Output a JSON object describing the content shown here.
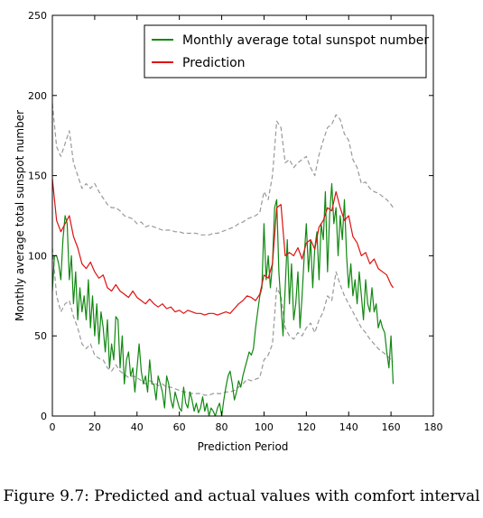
{
  "caption": "Figure 9.7: Predicted and actual values with comfort interval",
  "colors": {
    "actual": "#118811",
    "prediction": "#dd1111",
    "interval": "#999999"
  },
  "chart_data": {
    "type": "line",
    "xlabel": "Prediction Period",
    "ylabel": "Monthly average total sunspot number",
    "xlim": [
      0,
      180
    ],
    "ylim": [
      0,
      250
    ],
    "xticks": [
      0,
      20,
      40,
      60,
      80,
      100,
      120,
      140,
      160,
      180
    ],
    "yticks": [
      0,
      50,
      100,
      150,
      200,
      250
    ],
    "legend_position": "top-right",
    "legend": [
      "Monthly average total sunspot number",
      "Prediction"
    ],
    "series": [
      {
        "name": "Monthly average total sunspot number",
        "color": "#118811",
        "x": [
          0,
          1,
          2,
          3,
          4,
          5,
          6,
          7,
          8,
          9,
          10,
          11,
          12,
          13,
          14,
          15,
          16,
          17,
          18,
          19,
          20,
          21,
          22,
          23,
          24,
          25,
          26,
          27,
          28,
          29,
          30,
          31,
          32,
          33,
          34,
          35,
          36,
          37,
          38,
          39,
          40,
          41,
          42,
          43,
          44,
          45,
          46,
          47,
          48,
          49,
          50,
          51,
          52,
          53,
          54,
          55,
          56,
          57,
          58,
          59,
          60,
          61,
          62,
          63,
          64,
          65,
          66,
          67,
          68,
          69,
          70,
          71,
          72,
          73,
          74,
          75,
          76,
          77,
          78,
          79,
          80,
          81,
          82,
          83,
          84,
          85,
          86,
          87,
          88,
          89,
          90,
          91,
          92,
          93,
          94,
          95,
          96,
          97,
          98,
          99,
          100,
          101,
          102,
          103,
          104,
          105,
          106,
          107,
          108,
          109,
          110,
          111,
          112,
          113,
          114,
          115,
          116,
          117,
          118,
          119,
          120,
          121,
          122,
          123,
          124,
          125,
          126,
          127,
          128,
          129,
          130,
          131,
          132,
          133,
          134,
          135,
          136,
          137,
          138,
          139,
          140,
          141,
          142,
          143,
          144,
          145,
          146,
          147,
          148,
          149,
          150,
          151,
          152,
          153,
          154,
          155,
          156,
          157,
          158,
          159,
          160,
          161
        ],
        "values": [
          78,
          100,
          100,
          95,
          85,
          110,
          125,
          120,
          85,
          100,
          70,
          90,
          60,
          80,
          65,
          75,
          60,
          85,
          55,
          75,
          50,
          70,
          45,
          65,
          55,
          40,
          60,
          30,
          45,
          35,
          62,
          60,
          30,
          50,
          20,
          35,
          40,
          25,
          30,
          15,
          30,
          45,
          28,
          20,
          25,
          15,
          35,
          20,
          20,
          10,
          25,
          20,
          15,
          5,
          25,
          20,
          10,
          5,
          15,
          10,
          5,
          3,
          18,
          8,
          5,
          15,
          10,
          3,
          8,
          2,
          5,
          12,
          3,
          8,
          0,
          5,
          3,
          0,
          5,
          8,
          0,
          10,
          18,
          25,
          28,
          20,
          10,
          15,
          22,
          18,
          25,
          30,
          35,
          40,
          38,
          42,
          55,
          65,
          75,
          80,
          120,
          85,
          100,
          80,
          95,
          130,
          135,
          90,
          70,
          50,
          80,
          110,
          70,
          95,
          60,
          70,
          90,
          55,
          75,
          100,
          120,
          90,
          110,
          80,
          105,
          115,
          85,
          120,
          110,
          140,
          90,
          125,
          145,
          120,
          130,
          100,
          125,
          110,
          135,
          100,
          80,
          95,
          75,
          85,
          70,
          90,
          75,
          60,
          85,
          70,
          65,
          80,
          65,
          70,
          55,
          60,
          55,
          52,
          40,
          30,
          50,
          20
        ]
      },
      {
        "name": "Prediction",
        "color": "#dd1111",
        "x": [
          0,
          2,
          4,
          6,
          8,
          10,
          12,
          14,
          16,
          18,
          20,
          22,
          24,
          26,
          28,
          30,
          32,
          34,
          36,
          38,
          40,
          42,
          44,
          46,
          48,
          50,
          52,
          54,
          56,
          58,
          60,
          62,
          64,
          66,
          68,
          70,
          72,
          74,
          76,
          78,
          80,
          82,
          84,
          86,
          88,
          90,
          92,
          94,
          96,
          98,
          100,
          102,
          104,
          106,
          108,
          110,
          112,
          114,
          116,
          118,
          120,
          122,
          124,
          126,
          128,
          130,
          132,
          134,
          136,
          138,
          140,
          142,
          144,
          146,
          148,
          150,
          152,
          154,
          156,
          158,
          160,
          161
        ],
        "values": [
          148,
          122,
          115,
          120,
          125,
          112,
          105,
          95,
          92,
          96,
          90,
          86,
          88,
          80,
          78,
          82,
          78,
          76,
          74,
          78,
          74,
          72,
          70,
          73,
          70,
          68,
          70,
          67,
          68,
          65,
          66,
          64,
          66,
          65,
          64,
          64,
          63,
          64,
          64,
          63,
          64,
          65,
          64,
          67,
          70,
          72,
          75,
          74,
          72,
          76,
          88,
          86,
          95,
          130,
          132,
          100,
          102,
          100,
          105,
          98,
          108,
          110,
          104,
          118,
          122,
          130,
          128,
          140,
          130,
          122,
          125,
          112,
          108,
          100,
          102,
          95,
          98,
          92,
          90,
          88,
          82,
          80
        ]
      },
      {
        "name": "Upper interval",
        "color": "#999999",
        "x": [
          0,
          2,
          4,
          6,
          8,
          10,
          12,
          14,
          16,
          18,
          20,
          22,
          24,
          26,
          28,
          30,
          32,
          34,
          36,
          38,
          40,
          42,
          44,
          46,
          48,
          50,
          52,
          54,
          56,
          58,
          60,
          62,
          64,
          66,
          68,
          70,
          72,
          74,
          76,
          78,
          80,
          82,
          84,
          86,
          88,
          90,
          92,
          94,
          96,
          98,
          100,
          102,
          104,
          106,
          108,
          110,
          112,
          114,
          116,
          118,
          120,
          122,
          124,
          126,
          128,
          130,
          132,
          134,
          136,
          138,
          140,
          142,
          144,
          146,
          148,
          150,
          152,
          154,
          156,
          158,
          160,
          161
        ],
        "values": [
          195,
          168,
          162,
          170,
          178,
          158,
          150,
          142,
          145,
          142,
          145,
          140,
          136,
          132,
          130,
          130,
          128,
          125,
          124,
          123,
          120,
          121,
          118,
          119,
          118,
          117,
          116,
          116,
          116,
          115,
          115,
          114,
          114,
          114,
          114,
          113,
          113,
          113,
          114,
          114,
          115,
          116,
          117,
          118,
          120,
          121,
          123,
          124,
          125,
          127,
          140,
          135,
          150,
          184,
          180,
          158,
          160,
          155,
          158,
          160,
          162,
          155,
          150,
          163,
          172,
          180,
          182,
          188,
          185,
          176,
          172,
          160,
          155,
          145,
          146,
          142,
          140,
          139,
          137,
          135,
          132,
          130
        ]
      },
      {
        "name": "Lower interval",
        "color": "#999999",
        "x": [
          0,
          2,
          4,
          6,
          8,
          10,
          12,
          14,
          16,
          18,
          20,
          22,
          24,
          26,
          28,
          30,
          32,
          34,
          36,
          38,
          40,
          42,
          44,
          46,
          48,
          50,
          52,
          54,
          56,
          58,
          60,
          62,
          64,
          66,
          68,
          70,
          72,
          74,
          76,
          78,
          80,
          82,
          84,
          86,
          88,
          90,
          92,
          94,
          96,
          98,
          100,
          102,
          104,
          106,
          108,
          110,
          112,
          114,
          116,
          118,
          120,
          122,
          124,
          126,
          128,
          130,
          132,
          134,
          136,
          138,
          140,
          142,
          144,
          146,
          148,
          150,
          152,
          154,
          156,
          158,
          160,
          161
        ],
        "values": [
          105,
          75,
          65,
          70,
          72,
          62,
          55,
          45,
          42,
          45,
          38,
          36,
          35,
          30,
          28,
          32,
          28,
          26,
          24,
          25,
          24,
          22,
          20,
          22,
          21,
          19,
          20,
          18,
          18,
          17,
          16,
          15,
          15,
          14,
          14,
          14,
          13,
          13,
          14,
          14,
          14,
          15,
          15,
          16,
          18,
          20,
          23,
          22,
          23,
          24,
          35,
          38,
          45,
          80,
          75,
          55,
          50,
          48,
          52,
          50,
          55,
          58,
          52,
          60,
          65,
          75,
          72,
          90,
          82,
          75,
          70,
          65,
          60,
          55,
          52,
          48,
          45,
          42,
          40,
          38,
          35,
          34
        ]
      }
    ]
  }
}
